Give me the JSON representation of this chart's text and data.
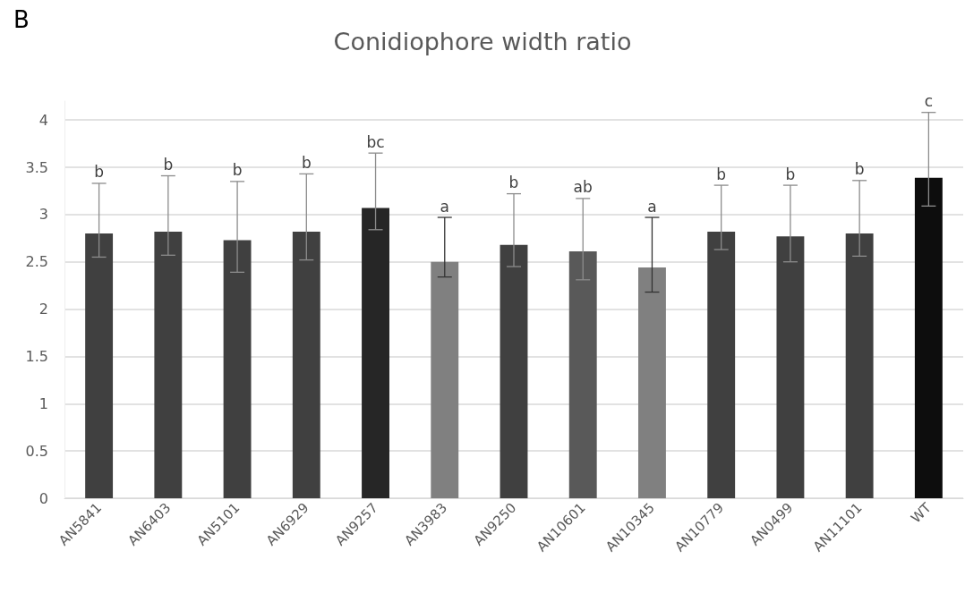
{
  "chart_data": {
    "type": "bar",
    "title": "Conidiophore width ratio",
    "categories": [
      "AN5841",
      "AN6403",
      "AN5101",
      "AN6929",
      "AN9257",
      "AN3983",
      "AN9250",
      "AN10601",
      "AN10345",
      "AN10779",
      "AN0499",
      "AN11101",
      "WT"
    ],
    "values": [
      2.8,
      2.82,
      2.73,
      2.82,
      3.07,
      2.5,
      2.68,
      2.61,
      2.44,
      2.82,
      2.77,
      2.8,
      3.39
    ],
    "colors": [
      "#404040",
      "#404040",
      "#404040",
      "#404040",
      "#262626",
      "#808080",
      "#404040",
      "#595959",
      "#808080",
      "#404040",
      "#404040",
      "#404040",
      "#0d0d0d"
    ],
    "errors": [
      [
        2.55,
        3.33
      ],
      [
        2.57,
        3.41
      ],
      [
        2.39,
        3.35
      ],
      [
        2.52,
        3.43
      ],
      [
        2.84,
        3.65
      ],
      [
        2.34,
        2.97
      ],
      [
        2.45,
        3.22
      ],
      [
        2.31,
        3.17
      ],
      [
        2.18,
        2.97
      ],
      [
        2.63,
        3.31
      ],
      [
        2.5,
        3.31
      ],
      [
        2.56,
        3.36
      ],
      [
        3.09,
        4.08
      ]
    ],
    "ylim": [
      0,
      4.2
    ],
    "yticks": [
      0,
      0.5,
      1,
      1.5,
      2,
      2.5,
      3,
      3.5,
      4
    ],
    "grid": "y",
    "annotations": [
      "B",
      {
        "text": "b",
        "x": "AN5841",
        "y": 3.33
      },
      {
        "text": "b",
        "x": "AN6403",
        "y": 3.41
      },
      {
        "text": "b",
        "x": "AN5101",
        "y": 3.35
      },
      {
        "text": "b",
        "x": "AN6929",
        "y": 3.43
      },
      {
        "text": "bc",
        "x": "AN9257",
        "y": 3.65
      },
      {
        "text": "a",
        "x": "AN3983",
        "y": 2.97
      },
      {
        "text": "b",
        "x": "AN9250",
        "y": 3.22
      },
      {
        "text": "ab",
        "x": "AN10601",
        "y": 3.17
      },
      {
        "text": "a",
        "x": "AN10345",
        "y": 2.97
      },
      {
        "text": "b",
        "x": "AN10779",
        "y": 3.31
      },
      {
        "text": "b",
        "x": "AN0499",
        "y": 3.31
      },
      {
        "text": "b",
        "x": "AN11101",
        "y": 3.36
      },
      {
        "text": "c",
        "x": "WT",
        "y": 4.08
      }
    ]
  }
}
